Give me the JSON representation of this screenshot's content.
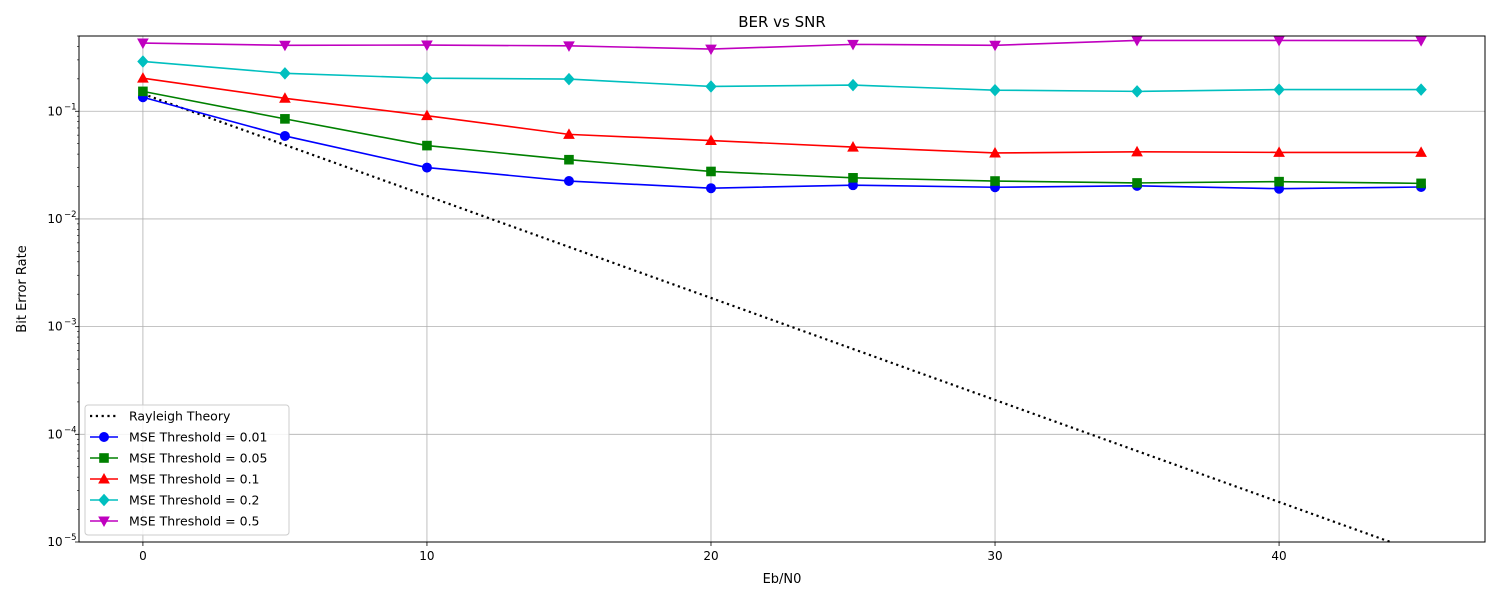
{
  "chart_data": {
    "type": "line",
    "title": "BER vs SNR",
    "xlabel": "Eb/N0",
    "ylabel": "Bit Error Rate",
    "xlim": [
      -2.25,
      47.25
    ],
    "ylim": [
      1e-05,
      0.5
    ],
    "yscale": "log",
    "grid": true,
    "legend_position": "lower left",
    "x_ticks": [
      0,
      10,
      20,
      30,
      40
    ],
    "y_ticks": [
      {
        "value": 1e-05,
        "base": "10",
        "exp": "−5"
      },
      {
        "value": 0.0001,
        "base": "10",
        "exp": "−4"
      },
      {
        "value": 0.001,
        "base": "10",
        "exp": "−3"
      },
      {
        "value": 0.01,
        "base": "10",
        "exp": "−2"
      },
      {
        "value": 0.1,
        "base": "10",
        "exp": "−1"
      }
    ],
    "theory": {
      "name": "Rayleigh Theory",
      "color": "#000000",
      "x": [
        0,
        45
      ],
      "y": [
        0.145,
        7.9e-06
      ]
    },
    "series": [
      {
        "name": "MSE Threshold = 0.01",
        "color": "#0000ff",
        "marker": "circle",
        "x": [
          0,
          5,
          10,
          15,
          20,
          25,
          30,
          35,
          40,
          45
        ],
        "y": [
          0.135,
          0.059,
          0.03,
          0.0225,
          0.0193,
          0.0206,
          0.0197,
          0.0203,
          0.0191,
          0.0198
        ]
      },
      {
        "name": "MSE Threshold = 0.05",
        "color": "#008000",
        "marker": "square",
        "x": [
          0,
          5,
          10,
          15,
          20,
          25,
          30,
          35,
          40,
          45
        ],
        "y": [
          0.153,
          0.085,
          0.048,
          0.0355,
          0.0276,
          0.0241,
          0.0225,
          0.0216,
          0.0222,
          0.0214
        ]
      },
      {
        "name": "MSE Threshold = 0.1",
        "color": "#ff0000",
        "marker": "triangle-up",
        "x": [
          0,
          5,
          10,
          15,
          20,
          25,
          30,
          35,
          40,
          45
        ],
        "y": [
          0.203,
          0.132,
          0.091,
          0.061,
          0.0535,
          0.0465,
          0.041,
          0.042,
          0.0415,
          0.0415
        ]
      },
      {
        "name": "MSE Threshold = 0.2",
        "color": "#00bfbf",
        "marker": "diamond",
        "x": [
          0,
          5,
          10,
          15,
          20,
          25,
          30,
          35,
          40,
          45
        ],
        "y": [
          0.29,
          0.225,
          0.203,
          0.199,
          0.17,
          0.175,
          0.157,
          0.153,
          0.159,
          0.159
        ]
      },
      {
        "name": "MSE Threshold = 0.5",
        "color": "#bf00bf",
        "marker": "triangle-down",
        "x": [
          0,
          5,
          10,
          15,
          20,
          25,
          30,
          35,
          40,
          45
        ],
        "y": [
          0.43,
          0.41,
          0.412,
          0.405,
          0.378,
          0.418,
          0.41,
          0.455,
          0.455,
          0.453
        ]
      }
    ]
  }
}
